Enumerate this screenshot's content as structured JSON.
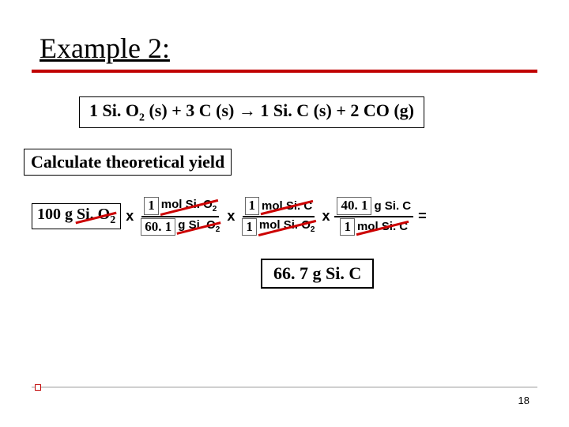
{
  "title": "Example 2:",
  "equation": {
    "c1": "1",
    "s1": "Si. O",
    "sub1": "2",
    "ph1": "(s)",
    "plus1": "+",
    "c2": "3",
    "s2": "C",
    "ph2": "(s)",
    "arrow": "→",
    "c3": "1",
    "s3": "Si. C",
    "ph3": "(s)",
    "plus2": "+",
    "c4": "2",
    "s4": "CO",
    "ph4": "(g)"
  },
  "instruction": "Calculate theoretical yield",
  "start": {
    "amount": "100 g",
    "species": "Si. O",
    "sub": "2"
  },
  "frac1": {
    "num_n": "1",
    "num_u": "mol Si. O",
    "num_sub": "2",
    "den_n": "60. 1",
    "den_u": "g Si. O",
    "den_sub": "2"
  },
  "frac2": {
    "num_n": "1",
    "num_u": "mol Si. C",
    "den_n": "1",
    "den_u": "mol Si. O",
    "den_sub": "2"
  },
  "frac3": {
    "num_n": "40. 1",
    "num_u": "g Si. C",
    "den_n": "1",
    "den_u": "mol Si. C"
  },
  "answer": "66. 7 g Si. C",
  "page": "18",
  "mult": "x",
  "eq": "=",
  "colors": {
    "accent": "#c00000",
    "strike": "#cc0000",
    "text": "#000000",
    "bg": "#ffffff"
  }
}
